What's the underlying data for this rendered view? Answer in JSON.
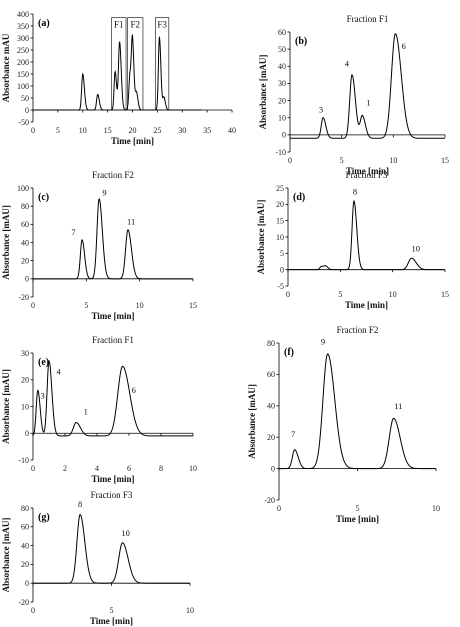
{
  "chart_data": [
    {
      "id": "a",
      "type": "line",
      "panel_label": "(a)",
      "title": "",
      "xlabel": "Time [min]",
      "ylabel": "Absorbance mAU",
      "xlim": [
        0,
        40
      ],
      "ylim": [
        -50,
        400
      ],
      "xticks": [
        0,
        5,
        10,
        15,
        20,
        25,
        30,
        35,
        40
      ],
      "yticks": [
        -50,
        0,
        50,
        100,
        150,
        200,
        250,
        300,
        350,
        400
      ],
      "baseline": 0,
      "peaks": [
        [
          10.0,
          150,
          0.22
        ],
        [
          13.0,
          65,
          0.22
        ],
        [
          16.5,
          160,
          0.2
        ],
        [
          17.4,
          283,
          0.22
        ],
        [
          19.5,
          150,
          0.22
        ],
        [
          20.0,
          262,
          0.2
        ],
        [
          20.8,
          70,
          0.2
        ],
        [
          25.4,
          303,
          0.2
        ],
        [
          26.3,
          52,
          0.2
        ]
      ],
      "tail": 34,
      "fraction_boxes": [
        {
          "label": "F1",
          "x0": 15.8,
          "x1": 18.7,
          "y0": 0,
          "y1": 385
        },
        {
          "label": "F2",
          "x0": 19.0,
          "x1": 22.1,
          "y0": 0,
          "y1": 385
        },
        {
          "label": "F3",
          "x0": 24.6,
          "x1": 27.3,
          "y0": 0,
          "y1": 385
        }
      ],
      "peak_labels": []
    },
    {
      "id": "b",
      "type": "line",
      "panel_label": "(b)",
      "title": "Fraction F1",
      "xlabel": "Time [min]",
      "ylabel": "Absorbance [mAU]",
      "xlim": [
        0,
        15
      ],
      "ylim": [
        -10,
        60
      ],
      "xticks": [
        0,
        5,
        10,
        15
      ],
      "yticks": [
        -10,
        0,
        10,
        20,
        30,
        40,
        50,
        60
      ],
      "baseline": -2,
      "peaks": [
        [
          3.2,
          10,
          0.18
        ],
        [
          6.0,
          35,
          0.22
        ],
        [
          7.0,
          11,
          0.2
        ],
        [
          10.2,
          59,
          0.38
        ]
      ],
      "tail": 15,
      "peak_labels": [
        {
          "text": "3",
          "x": 3.0,
          "y": 13
        },
        {
          "text": "4",
          "x": 5.5,
          "y": 40
        },
        {
          "text": "1",
          "x": 7.6,
          "y": 17
        },
        {
          "text": "6",
          "x": 11.0,
          "y": 50
        }
      ]
    },
    {
      "id": "c",
      "type": "line",
      "panel_label": "(c)",
      "title": "Fraction F2",
      "xlabel": "Time [min]",
      "ylabel": "Absorbance [mAU]",
      "xlim": [
        0,
        15
      ],
      "ylim": [
        -20,
        100
      ],
      "xticks": [
        0,
        5,
        10,
        15
      ],
      "yticks": [
        -20,
        0,
        20,
        40,
        60,
        80,
        100
      ],
      "baseline": 0,
      "peaks": [
        [
          4.6,
          43,
          0.16
        ],
        [
          6.2,
          88,
          0.2
        ],
        [
          8.9,
          54,
          0.22
        ]
      ],
      "tail": 15,
      "peak_labels": [
        {
          "text": "7",
          "x": 3.8,
          "y": 48
        },
        {
          "text": "9",
          "x": 6.7,
          "y": 92
        },
        {
          "text": "11",
          "x": 9.2,
          "y": 60
        }
      ]
    },
    {
      "id": "d",
      "type": "line",
      "panel_label": "(d)",
      "title": "Fraction F3",
      "xlabel": "Time [min]",
      "ylabel": "Absorbance [mAU]",
      "xlim": [
        0,
        15
      ],
      "ylim": [
        -5,
        25
      ],
      "xticks": [
        0,
        5,
        10,
        15
      ],
      "yticks": [
        -5,
        0,
        5,
        10,
        15,
        20,
        25
      ],
      "baseline": 0,
      "peaks": [
        [
          3.2,
          1,
          0.15
        ],
        [
          3.6,
          1,
          0.15
        ],
        [
          6.3,
          21,
          0.18
        ],
        [
          11.8,
          3.5,
          0.3
        ]
      ],
      "tail": 15,
      "peak_labels": [
        {
          "text": "8",
          "x": 6.4,
          "y": 23
        },
        {
          "text": "10",
          "x": 12.2,
          "y": 5.5
        }
      ]
    },
    {
      "id": "e",
      "type": "line",
      "panel_label": "(e)",
      "title": "Fraction F1",
      "xlabel": "Time [min]",
      "ylabel": "Absorbance [mAU]",
      "xlim": [
        0,
        10
      ],
      "ylim": [
        -10,
        30
      ],
      "xticks": [
        0,
        2,
        4,
        6,
        8,
        10
      ],
      "yticks": [
        -10,
        0,
        10,
        20,
        30
      ],
      "baseline": -1,
      "peaks": [
        [
          0.3,
          16,
          0.1
        ],
        [
          1.0,
          27,
          0.12
        ],
        [
          2.7,
          4,
          0.18
        ],
        [
          5.6,
          25,
          0.3
        ]
      ],
      "tail": 10,
      "peak_labels": [
        {
          "text": "3",
          "x": 0.6,
          "y": 13
        },
        {
          "text": "4",
          "x": 1.6,
          "y": 22
        },
        {
          "text": "1",
          "x": 3.3,
          "y": 7
        },
        {
          "text": "6",
          "x": 6.3,
          "y": 15
        }
      ]
    },
    {
      "id": "f",
      "type": "line",
      "panel_label": "(f)",
      "title": "Fraction F2",
      "xlabel": "Time [min]",
      "ylabel": "Absorbance [mAU]",
      "xlim": [
        0,
        10
      ],
      "ylim": [
        -20,
        80
      ],
      "xticks": [
        0,
        5,
        10
      ],
      "yticks": [
        -20,
        0,
        20,
        40,
        60,
        80
      ],
      "baseline": 0,
      "peaks": [
        [
          1.0,
          12,
          0.15
        ],
        [
          3.1,
          73,
          0.3
        ],
        [
          7.3,
          32,
          0.28
        ]
      ],
      "tail": 10,
      "peak_labels": [
        {
          "text": "7",
          "x": 0.9,
          "y": 20
        },
        {
          "text": "9",
          "x": 2.8,
          "y": 79
        },
        {
          "text": "11",
          "x": 7.6,
          "y": 38
        }
      ]
    },
    {
      "id": "g",
      "type": "line",
      "panel_label": "(g)",
      "title": "Fraction F3",
      "xlabel": "Time [min]",
      "ylabel": "Absorbance [mAU]",
      "xlim": [
        0,
        10
      ],
      "ylim": [
        -20,
        80
      ],
      "xticks": [
        0,
        5,
        10
      ],
      "yticks": [
        -20,
        0,
        20,
        40,
        60,
        80
      ],
      "baseline": 0,
      "peaks": [
        [
          3.0,
          73,
          0.2
        ],
        [
          5.7,
          43,
          0.24
        ]
      ],
      "tail": 10,
      "peak_labels": [
        {
          "text": "8",
          "x": 3.0,
          "y": 81
        },
        {
          "text": "10",
          "x": 5.9,
          "y": 50
        }
      ]
    }
  ]
}
